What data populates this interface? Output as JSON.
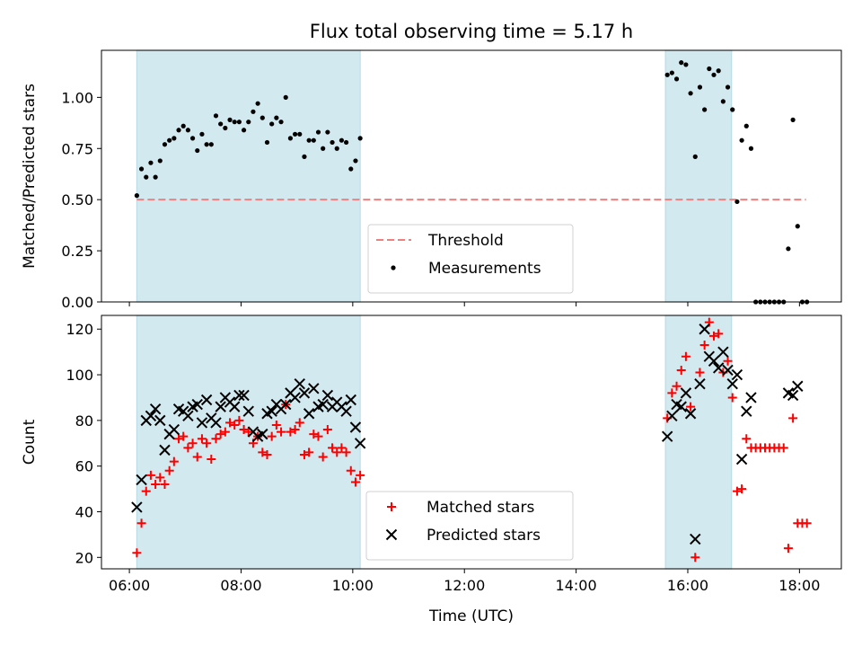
{
  "chart_data": [
    {
      "type": "scatter",
      "title": "Flux total observing time = 5.17 h",
      "xlabel": "",
      "ylabel": "Matched/Predicted stars",
      "xlim": [
        "05:30",
        "18:45"
      ],
      "ylim": [
        0,
        1.23
      ],
      "yticks": [
        "0.00",
        "0.25",
        "0.50",
        "0.75",
        "1.00"
      ],
      "grid": false,
      "legend": "bottom-center",
      "shaded_intervals": [
        [
          "06:08",
          "10:08"
        ],
        [
          "15:36",
          "16:47"
        ]
      ],
      "threshold": {
        "name": "Threshold",
        "y": 0.5,
        "x": [
          "06:08",
          "18:07"
        ],
        "color": "#f08080"
      },
      "series": [
        {
          "name": "Measurements",
          "color": "#000000",
          "points": [
            [
              "06:08",
              0.52
            ],
            [
              "06:13",
              0.65
            ],
            [
              "06:18",
              0.61
            ],
            [
              "06:23",
              0.68
            ],
            [
              "06:28",
              0.61
            ],
            [
              "06:33",
              0.69
            ],
            [
              "06:38",
              0.77
            ],
            [
              "06:43",
              0.79
            ],
            [
              "06:48",
              0.8
            ],
            [
              "06:53",
              0.84
            ],
            [
              "06:58",
              0.86
            ],
            [
              "07:03",
              0.84
            ],
            [
              "07:08",
              0.8
            ],
            [
              "07:13",
              0.74
            ],
            [
              "07:18",
              0.82
            ],
            [
              "07:23",
              0.77
            ],
            [
              "07:28",
              0.77
            ],
            [
              "07:33",
              0.91
            ],
            [
              "07:38",
              0.87
            ],
            [
              "07:43",
              0.85
            ],
            [
              "07:48",
              0.89
            ],
            [
              "07:53",
              0.88
            ],
            [
              "07:58",
              0.88
            ],
            [
              "08:03",
              0.84
            ],
            [
              "08:08",
              0.88
            ],
            [
              "08:13",
              0.93
            ],
            [
              "08:18",
              0.97
            ],
            [
              "08:23",
              0.9
            ],
            [
              "08:28",
              0.78
            ],
            [
              "08:33",
              0.87
            ],
            [
              "08:38",
              0.9
            ],
            [
              "08:43",
              0.88
            ],
            [
              "08:48",
              1.0
            ],
            [
              "08:53",
              0.8
            ],
            [
              "08:58",
              0.82
            ],
            [
              "09:03",
              0.82
            ],
            [
              "09:08",
              0.71
            ],
            [
              "09:13",
              0.79
            ],
            [
              "09:18",
              0.79
            ],
            [
              "09:23",
              0.83
            ],
            [
              "09:28",
              0.75
            ],
            [
              "09:33",
              0.83
            ],
            [
              "09:38",
              0.78
            ],
            [
              "09:43",
              0.75
            ],
            [
              "09:48",
              0.79
            ],
            [
              "09:53",
              0.78
            ],
            [
              "09:58",
              0.65
            ],
            [
              "10:03",
              0.69
            ],
            [
              "10:08",
              0.8
            ],
            [
              "15:38",
              1.11
            ],
            [
              "15:43",
              1.12
            ],
            [
              "15:48",
              1.09
            ],
            [
              "15:53",
              1.17
            ],
            [
              "15:58",
              1.16
            ],
            [
              "16:03",
              1.02
            ],
            [
              "16:08",
              0.71
            ],
            [
              "16:13",
              1.05
            ],
            [
              "16:18",
              0.94
            ],
            [
              "16:23",
              1.14
            ],
            [
              "16:28",
              1.11
            ],
            [
              "16:33",
              1.13
            ],
            [
              "16:38",
              0.98
            ],
            [
              "16:43",
              1.05
            ],
            [
              "16:48",
              0.94
            ],
            [
              "16:53",
              0.49
            ],
            [
              "16:58",
              0.79
            ],
            [
              "17:03",
              0.86
            ],
            [
              "17:08",
              0.75
            ],
            [
              "17:13",
              0.0
            ],
            [
              "17:18",
              0.0
            ],
            [
              "17:23",
              0.0
            ],
            [
              "17:28",
              0.0
            ],
            [
              "17:33",
              0.0
            ],
            [
              "17:38",
              0.0
            ],
            [
              "17:43",
              0.0
            ],
            [
              "17:48",
              0.26
            ],
            [
              "17:53",
              0.89
            ],
            [
              "17:58",
              0.37
            ],
            [
              "18:03",
              0.0
            ],
            [
              "18:08",
              0.0
            ]
          ]
        }
      ]
    },
    {
      "type": "scatter",
      "title": "",
      "xlabel": "Time (UTC)",
      "ylabel": "Count",
      "xlim": [
        "05:30",
        "18:45"
      ],
      "ylim": [
        15,
        126
      ],
      "xticks": [
        "06:00",
        "08:00",
        "10:00",
        "12:00",
        "14:00",
        "16:00",
        "18:00"
      ],
      "yticks": [
        "20",
        "40",
        "60",
        "80",
        "100",
        "120"
      ],
      "grid": false,
      "legend": "bottom-center",
      "shaded_intervals": [
        [
          "06:08",
          "10:08"
        ],
        [
          "15:36",
          "16:47"
        ]
      ],
      "series": [
        {
          "name": "Matched stars",
          "marker": "+",
          "color": "#ff0000",
          "points": [
            [
              "06:08",
              22
            ],
            [
              "06:13",
              35
            ],
            [
              "06:18",
              49
            ],
            [
              "06:23",
              56
            ],
            [
              "06:28",
              52
            ],
            [
              "06:33",
              55
            ],
            [
              "06:38",
              52
            ],
            [
              "06:43",
              58
            ],
            [
              "06:48",
              62
            ],
            [
              "06:53",
              72
            ],
            [
              "06:58",
              73
            ],
            [
              "07:03",
              68
            ],
            [
              "07:08",
              70
            ],
            [
              "07:13",
              64
            ],
            [
              "07:18",
              72
            ],
            [
              "07:23",
              70
            ],
            [
              "07:28",
              63
            ],
            [
              "07:33",
              72
            ],
            [
              "07:38",
              74
            ],
            [
              "07:43",
              75
            ],
            [
              "07:48",
              79
            ],
            [
              "07:53",
              78
            ],
            [
              "07:58",
              80
            ],
            [
              "08:03",
              76
            ],
            [
              "08:08",
              75
            ],
            [
              "08:13",
              70
            ],
            [
              "08:18",
              73
            ],
            [
              "08:23",
              66
            ],
            [
              "08:28",
              65
            ],
            [
              "08:33",
              73
            ],
            [
              "08:38",
              78
            ],
            [
              "08:43",
              75
            ],
            [
              "08:48",
              87
            ],
            [
              "08:53",
              75
            ],
            [
              "08:58",
              76
            ],
            [
              "09:03",
              79
            ],
            [
              "09:08",
              65
            ],
            [
              "09:13",
              66
            ],
            [
              "09:18",
              74
            ],
            [
              "09:23",
              73
            ],
            [
              "09:28",
              64
            ],
            [
              "09:33",
              76
            ],
            [
              "09:38",
              68
            ],
            [
              "09:43",
              66
            ],
            [
              "09:48",
              68
            ],
            [
              "09:53",
              66
            ],
            [
              "09:58",
              58
            ],
            [
              "10:03",
              53
            ],
            [
              "10:08",
              56
            ],
            [
              "15:38",
              81
            ],
            [
              "15:43",
              92
            ],
            [
              "15:48",
              95
            ],
            [
              "15:53",
              102
            ],
            [
              "15:58",
              108
            ],
            [
              "16:03",
              86
            ],
            [
              "16:08",
              20
            ],
            [
              "16:13",
              101
            ],
            [
              "16:18",
              113
            ],
            [
              "16:23",
              123
            ],
            [
              "16:28",
              117
            ],
            [
              "16:33",
              118
            ],
            [
              "16:38",
              101
            ],
            [
              "16:43",
              106
            ],
            [
              "16:48",
              90
            ],
            [
              "16:53",
              49
            ],
            [
              "16:58",
              50
            ],
            [
              "17:03",
              72
            ],
            [
              "17:08",
              68
            ],
            [
              "17:13",
              68
            ],
            [
              "17:18",
              68
            ],
            [
              "17:23",
              68
            ],
            [
              "17:28",
              68
            ],
            [
              "17:33",
              68
            ],
            [
              "17:38",
              68
            ],
            [
              "17:43",
              68
            ],
            [
              "17:48",
              24
            ],
            [
              "17:53",
              81
            ],
            [
              "17:58",
              35
            ],
            [
              "18:03",
              35
            ],
            [
              "18:08",
              35
            ]
          ]
        },
        {
          "name": "Predicted stars",
          "marker": "x",
          "color": "#000000",
          "points": [
            [
              "06:08",
              42
            ],
            [
              "06:13",
              54
            ],
            [
              "06:18",
              80
            ],
            [
              "06:23",
              82
            ],
            [
              "06:28",
              85
            ],
            [
              "06:33",
              80
            ],
            [
              "06:38",
              67
            ],
            [
              "06:43",
              74
            ],
            [
              "06:48",
              76
            ],
            [
              "06:53",
              85
            ],
            [
              "06:58",
              84
            ],
            [
              "07:03",
              82
            ],
            [
              "07:08",
              86
            ],
            [
              "07:13",
              87
            ],
            [
              "07:18",
              79
            ],
            [
              "07:23",
              89
            ],
            [
              "07:28",
              81
            ],
            [
              "07:33",
              79
            ],
            [
              "07:38",
              86
            ],
            [
              "07:43",
              90
            ],
            [
              "07:48",
              88
            ],
            [
              "07:53",
              86
            ],
            [
              "07:58",
              91
            ],
            [
              "08:03",
              91
            ],
            [
              "08:08",
              84
            ],
            [
              "08:13",
              75
            ],
            [
              "08:18",
              73
            ],
            [
              "08:23",
              74
            ],
            [
              "08:28",
              83
            ],
            [
              "08:33",
              84
            ],
            [
              "08:38",
              87
            ],
            [
              "08:43",
              85
            ],
            [
              "08:48",
              87
            ],
            [
              "08:53",
              92
            ],
            [
              "08:58",
              90
            ],
            [
              "09:03",
              96
            ],
            [
              "09:08",
              92
            ],
            [
              "09:13",
              83
            ],
            [
              "09:18",
              94
            ],
            [
              "09:23",
              86
            ],
            [
              "09:28",
              87
            ],
            [
              "09:33",
              91
            ],
            [
              "09:38",
              86
            ],
            [
              "09:43",
              88
            ],
            [
              "09:48",
              86
            ],
            [
              "09:53",
              84
            ],
            [
              "09:58",
              89
            ],
            [
              "10:03",
              77
            ],
            [
              "10:08",
              70
            ],
            [
              "15:38",
              73
            ],
            [
              "15:43",
              82
            ],
            [
              "15:48",
              87
            ],
            [
              "15:53",
              86
            ],
            [
              "15:58",
              92
            ],
            [
              "16:03",
              83
            ],
            [
              "16:08",
              28
            ],
            [
              "16:13",
              96
            ],
            [
              "16:18",
              120
            ],
            [
              "16:23",
              108
            ],
            [
              "16:28",
              106
            ],
            [
              "16:33",
              103
            ],
            [
              "16:38",
              110
            ],
            [
              "16:43",
              102
            ],
            [
              "16:48",
              96
            ],
            [
              "16:53",
              100
            ],
            [
              "16:58",
              63
            ],
            [
              "17:03",
              84
            ],
            [
              "17:08",
              90
            ],
            [
              "17:48",
              92
            ],
            [
              "17:53",
              91
            ],
            [
              "17:58",
              95
            ]
          ]
        }
      ]
    }
  ]
}
